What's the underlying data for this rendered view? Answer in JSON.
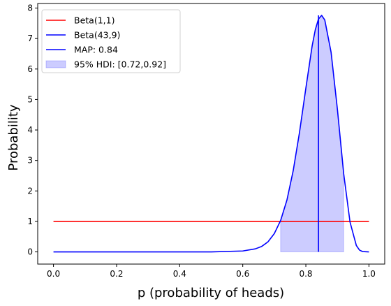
{
  "chart_data": {
    "type": "line",
    "xlabel": "p (probability of heads)",
    "ylabel": "Probability",
    "xlim": [
      -0.05,
      1.05
    ],
    "ylim": [
      -0.4,
      8.15
    ],
    "x_ticks": [
      "0.0",
      "0.2",
      "0.4",
      "0.6",
      "0.8",
      "1.0"
    ],
    "x_tick_values": [
      0,
      0.2,
      0.4,
      0.6,
      0.8,
      1.0
    ],
    "y_ticks": [
      "0",
      "1",
      "2",
      "3",
      "4",
      "5",
      "6",
      "7",
      "8"
    ],
    "y_tick_values": [
      0,
      1,
      2,
      3,
      4,
      5,
      6,
      7,
      8
    ],
    "grid": false,
    "legend_position": "top-left",
    "series": [
      {
        "name": "Beta(1,1)",
        "color": "#ff0000",
        "kind": "line",
        "x": [
          0.0,
          1.0
        ],
        "values": [
          1,
          1
        ]
      },
      {
        "name": "Beta(43,9)",
        "color": "#0000ff",
        "kind": "line",
        "x": [
          0.0,
          0.5,
          0.6,
          0.64,
          0.66,
          0.68,
          0.7,
          0.72,
          0.74,
          0.76,
          0.78,
          0.8,
          0.82,
          0.83,
          0.84,
          0.85,
          0.86,
          0.88,
          0.9,
          0.92,
          0.94,
          0.96,
          0.97,
          0.98,
          1.0
        ],
        "values": [
          0.0,
          0.0,
          0.03,
          0.1,
          0.18,
          0.33,
          0.6,
          1.03,
          1.7,
          2.67,
          3.93,
          5.37,
          6.76,
          7.29,
          7.64,
          7.76,
          7.61,
          6.55,
          4.68,
          2.56,
          0.98,
          0.21,
          0.06,
          0.01,
          0.0
        ]
      },
      {
        "name": "MAP: 0.84",
        "color": "#0000ff",
        "kind": "vline",
        "x": [
          0.84,
          0.84
        ],
        "values": [
          0,
          7.76
        ]
      },
      {
        "name": "95% HDI: [0.72,0.92]",
        "color": "#0000ff",
        "kind": "fill",
        "range": [
          0.72,
          0.92
        ]
      }
    ]
  }
}
